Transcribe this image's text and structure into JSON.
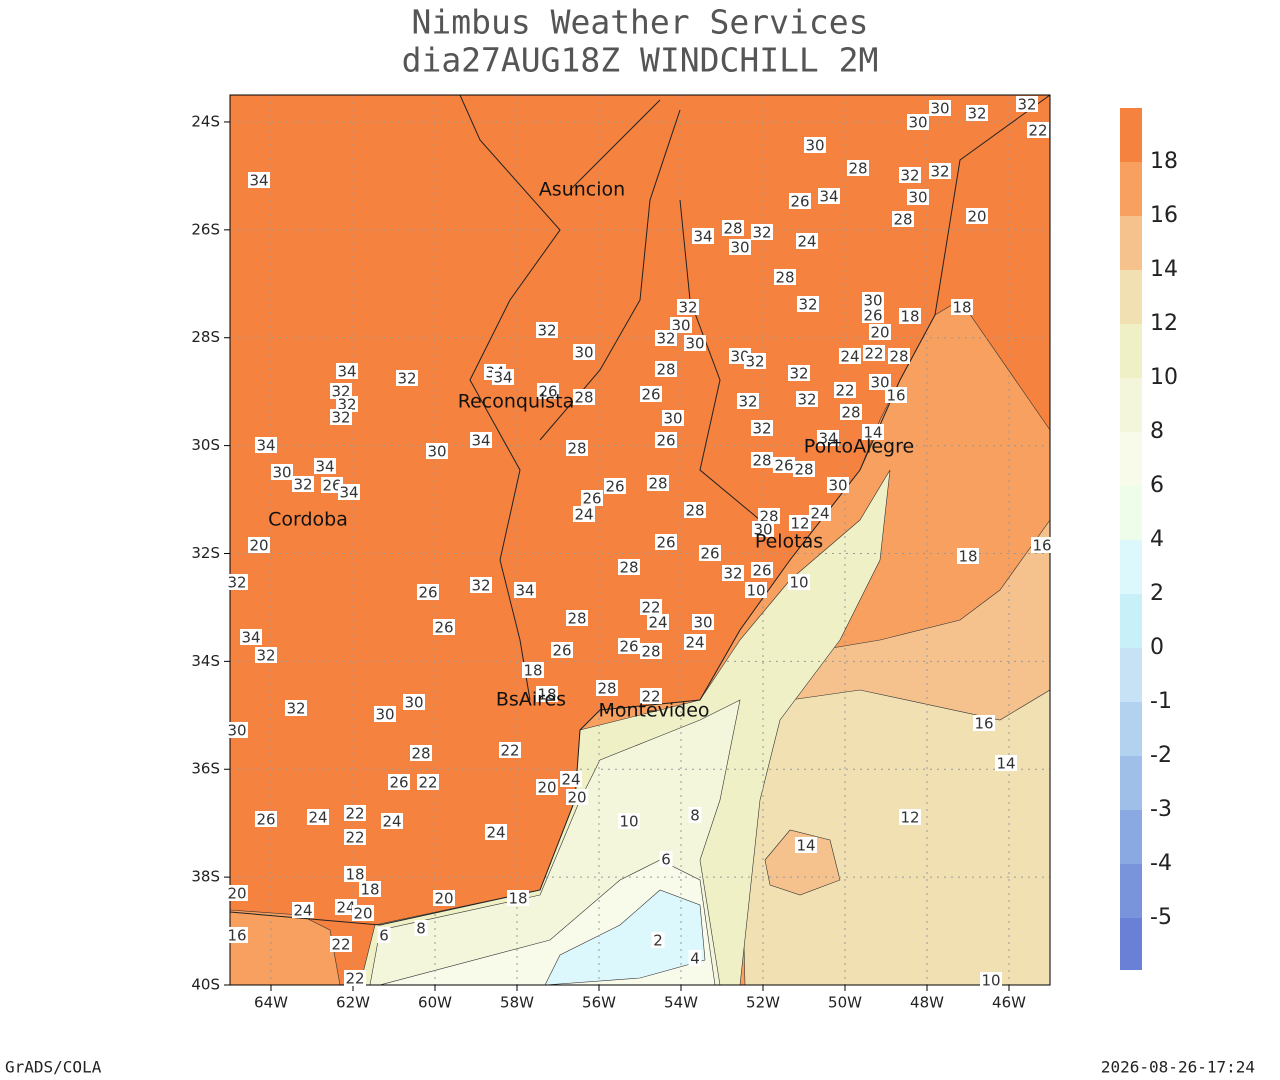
{
  "header": {
    "title": "Nimbus Weather Services",
    "subtitle": "dia27AUG18Z WINDCHILL 2M"
  },
  "map": {
    "xlim": [
      -65,
      -45
    ],
    "ylim": [
      -40,
      -23.5
    ],
    "xticks": [
      {
        "value": -64,
        "label": "64W"
      },
      {
        "value": -62,
        "label": "62W"
      },
      {
        "value": -60,
        "label": "60W"
      },
      {
        "value": -58,
        "label": "58W"
      },
      {
        "value": -56,
        "label": "56W"
      },
      {
        "value": -54,
        "label": "54W"
      },
      {
        "value": -52,
        "label": "52W"
      },
      {
        "value": -50,
        "label": "50W"
      },
      {
        "value": -48,
        "label": "48W"
      },
      {
        "value": -46,
        "label": "46W"
      }
    ],
    "yticks": [
      {
        "value": -24,
        "label": "24S"
      },
      {
        "value": -26,
        "label": "26S"
      },
      {
        "value": -28,
        "label": "28S"
      },
      {
        "value": -30,
        "label": "30S"
      },
      {
        "value": -32,
        "label": "32S"
      },
      {
        "value": -34,
        "label": "34S"
      },
      {
        "value": -36,
        "label": "36S"
      },
      {
        "value": -38,
        "label": "38S"
      },
      {
        "value": -40,
        "label": "40S"
      }
    ],
    "grid": true,
    "cities": [
      "Asuncion",
      "Reconquista",
      "PortoAlegre",
      "Cordoba",
      "Pelotas",
      "BsAires",
      "Montevideo"
    ],
    "contour_labels": [
      34,
      30,
      28,
      30,
      30,
      32,
      32,
      22,
      32,
      32,
      30,
      28,
      20,
      34,
      26,
      28,
      32,
      30,
      34,
      24,
      28,
      32,
      30,
      26,
      18,
      20,
      18,
      32,
      30,
      32,
      30,
      32,
      30,
      30,
      32,
      24,
      22,
      28,
      32,
      28,
      22,
      30,
      16,
      34,
      32,
      34,
      34,
      32,
      32,
      32,
      26,
      28,
      26,
      32,
      32,
      28,
      30,
      32,
      34,
      30,
      34,
      28,
      26,
      34,
      14,
      28,
      26,
      28,
      34,
      30,
      32,
      26,
      34,
      28,
      26,
      26,
      24,
      28,
      28,
      30,
      12,
      24,
      30,
      20,
      26,
      26,
      18,
      16,
      32,
      28,
      32,
      26,
      10,
      10,
      32,
      26,
      34,
      28,
      22,
      24,
      30,
      24,
      26,
      34,
      32,
      26,
      26,
      28,
      18,
      28,
      22,
      18,
      30,
      32,
      30,
      30,
      16,
      22,
      28,
      26,
      22,
      24,
      20,
      20,
      14,
      26,
      24,
      22,
      24,
      22,
      24,
      10,
      8,
      12,
      14,
      6,
      18,
      18,
      20,
      18,
      24,
      24,
      20,
      16,
      6,
      8,
      22,
      2,
      4,
      22,
      10,
      20
    ]
  },
  "colorbar": {
    "levels": [
      18,
      16,
      14,
      12,
      10,
      8,
      6,
      4,
      2,
      0,
      -1,
      -2,
      -3,
      -4,
      -5
    ],
    "colors": [
      "#f5823f",
      "#f7a060",
      "#f5c18c",
      "#f1e1b2",
      "#eff0c6",
      "#f3f6da",
      "#f8fbea",
      "#eefde9",
      "#dcf8fc",
      "#c8f0f8",
      "#c6e2f4",
      "#b2d2ef",
      "#9fbee8",
      "#8aa8e1",
      "#7a94dc",
      "#6a80d6"
    ]
  },
  "footer": {
    "left": "GrADS/COLA",
    "right": "2026-08-26-17:24"
  }
}
